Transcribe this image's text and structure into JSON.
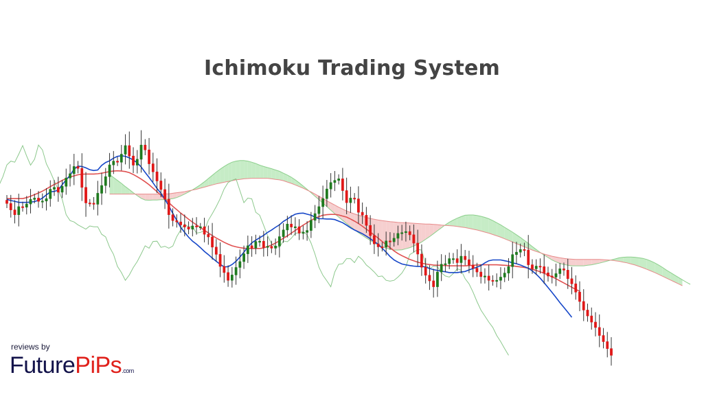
{
  "chart_data": {
    "type": "candlestick",
    "title": "Ichimoku Trading System",
    "xlabel": "",
    "ylabel": "",
    "ylim": [
      0,
      100
    ],
    "grid": false,
    "legend": "none",
    "colors": {
      "bull": "#1f7a1f",
      "bear": "#e01818",
      "tenkan": "#1546c8",
      "kijun": "#e05050",
      "span_a": "#8ccf8c",
      "span_b": "#e88a8a",
      "chikou": "#8cc88c",
      "cloud_bull": "#c6ecc6",
      "cloud_bear": "#f6cfcf"
    },
    "close": [
      62.5,
      60.1,
      58.3,
      61.3,
      61.1,
      62.3,
      64.0,
      64.5,
      63.3,
      63.4,
      64.3,
      67.8,
      68.5,
      66.7,
      68.9,
      72.0,
      73.6,
      76.3,
      75.6,
      68.5,
      62.7,
      62.6,
      62.2,
      66.3,
      69.2,
      72.5,
      76.9,
      78.3,
      77.9,
      80.9,
      84.1,
      80.2,
      76.8,
      79.0,
      84.3,
      82.5,
      77.3,
      74.3,
      70.9,
      67.7,
      64.1,
      58.3,
      56.1,
      55.6,
      54.5,
      53.7,
      52.9,
      54.1,
      53.8,
      53.8,
      51.0,
      50.0,
      46.2,
      43.5,
      39.0,
      36.7,
      33.8,
      35.8,
      38.6,
      40.8,
      43.7,
      46.7,
      45.8,
      48.3,
      48.4,
      46.1,
      46.5,
      45.8,
      46.6,
      50.1,
      52.6,
      54.8,
      53.7,
      53.8,
      51.4,
      51.7,
      52.4,
      56.2,
      58.7,
      61.3,
      64.3,
      67.9,
      70.3,
      71.1,
      71.7,
      67.3,
      62.8,
      64.5,
      64.2,
      59.2,
      58.1,
      54.3,
      50.5,
      47.4,
      46.3,
      46.2,
      48.5,
      48.2,
      49.5,
      51.3,
      51.6,
      52.0,
      50.8,
      47.7,
      43.6,
      38.7,
      35.7,
      33.6,
      31.4,
      36.9,
      39.8,
      40.0,
      41.9,
      41.9,
      40.4,
      42.8,
      41.5,
      39.5,
      38.3,
      36.9,
      35.2,
      35.4,
      33.8,
      33.5,
      33.8,
      35.0,
      36.5,
      38.9,
      43.4,
      44.3,
      45.3,
      45.1,
      39.6,
      38.1,
      39.1,
      38.9,
      36.6,
      35.4,
      35.0,
      36.3,
      38.1,
      37.6,
      34.4,
      32.5,
      29.4,
      25.9,
      22.7,
      20.5,
      18.2,
      16.2,
      13.2,
      10.9,
      8.3,
      5.8
    ],
    "tenkan": [
      64.0,
      63.6,
      63.3,
      62.9,
      62.9,
      62.9,
      63.0,
      63.2,
      63.7,
      64.5,
      65.7,
      66.8,
      67.0,
      67.5,
      69.5,
      71.3,
      73.0,
      75.3,
      76.4,
      76.3,
      75.8,
      75.1,
      74.8,
      75.0,
      76.7,
      77.8,
      78.4,
      79.4,
      80.1,
      80.3,
      80.1,
      79.5,
      78.7,
      77.7,
      76.1,
      74.1,
      72.2,
      70.2,
      68.1,
      66.3,
      64.0,
      61.6,
      58.8,
      56.2,
      53.6,
      51.7,
      49.9,
      48.4,
      47.3,
      46.0,
      44.6,
      43.4,
      42.1,
      40.9,
      39.8,
      38.8,
      38.9,
      39.7,
      40.9,
      42.5,
      44.3,
      46.2,
      47.8,
      48.8,
      49.7,
      50.6,
      51.7,
      52.6,
      53.6,
      54.5,
      55.8,
      56.7,
      57.7,
      58.5,
      58.8,
      58.9,
      58.5,
      58.1,
      57.4,
      56.8,
      56.8,
      56.7,
      56.7,
      56.5,
      55.9,
      55.3,
      54.4,
      53.4,
      52.6,
      51.9,
      51.2,
      50.3,
      49.3,
      48.3,
      47.2,
      45.8,
      44.3,
      42.7,
      41.4,
      40.6,
      39.9,
      39.6,
      39.3,
      39.1,
      39.0,
      39.0,
      38.8,
      38.2,
      37.8,
      37.5,
      37.2,
      37.0,
      36.7,
      36.7,
      36.7,
      36.9,
      37.1,
      37.7,
      38.2,
      38.7,
      39.3,
      40.3,
      41.1,
      41.4,
      41.4,
      41.4,
      41.1,
      40.8,
      40.3,
      40.0,
      39.5,
      38.9,
      38.3,
      37.3,
      36.1,
      34.6,
      32.9,
      31.1,
      29.3,
      27.4,
      25.5,
      23.7,
      21.9,
      20.0
    ],
    "kijun": [
      64.3,
      64.3,
      64.3,
      64.3,
      64.3,
      64.7,
      65.2,
      65.8,
      66.4,
      67.1,
      67.9,
      68.8,
      69.6,
      70.3,
      71.1,
      71.8,
      72.4,
      72.8,
      73.2,
      73.4,
      73.5,
      73.5,
      73.5,
      73.6,
      73.8,
      74.1,
      74.4,
      74.6,
      74.7,
      74.6,
      74.4,
      74.0,
      73.3,
      72.5,
      71.6,
      70.6,
      69.5,
      68.2,
      66.9,
      65.6,
      64.2,
      62.8,
      61.4,
      60.2,
      58.9,
      57.8,
      56.6,
      55.5,
      54.5,
      53.5,
      52.5,
      51.5,
      50.5,
      49.6,
      48.8,
      48.0,
      47.3,
      46.7,
      46.3,
      46.0,
      45.8,
      45.7,
      45.7,
      45.7,
      45.7,
      45.9,
      46.4,
      47.0,
      47.7,
      48.6,
      49.5,
      50.4,
      51.4,
      52.4,
      53.4,
      54.4,
      55.3,
      56.2,
      57.0,
      57.6,
      58.1,
      58.3,
      58.4,
      58.4,
      58.2,
      57.8,
      57.4,
      56.7,
      55.9,
      55.0,
      54.0,
      52.9,
      51.8,
      50.7,
      49.5,
      48.3,
      47.1,
      46.0,
      44.8,
      43.8,
      43.0,
      42.3,
      41.6,
      41.1,
      40.6,
      40.2,
      39.9,
      39.7,
      39.5,
      39.4,
      39.4,
      39.3,
      39.2,
      39.2,
      39.2,
      39.2,
      39.2,
      39.3,
      39.4,
      39.5,
      39.6,
      39.6,
      39.6,
      39.6,
      39.6,
      39.5,
      39.4,
      39.3,
      39.2,
      39.0,
      38.8,
      38.6,
      38.3,
      37.9,
      37.5,
      37.0,
      36.4,
      35.8,
      35.1,
      34.4,
      33.6,
      32.8,
      32.0,
      31.2,
      30.4,
      29.7
    ],
    "span_a": [
      73.3,
      72.2,
      71.1,
      70.0,
      68.8,
      67.7,
      66.5,
      65.4,
      64.4,
      63.8,
      63.7,
      63.8,
      63.8,
      63.9,
      63.9,
      64.1,
      64.3,
      64.7,
      65.3,
      66.0,
      66.8,
      67.6,
      68.5,
      69.5,
      70.6,
      71.8,
      73.0,
      74.2,
      75.3,
      76.3,
      77.2,
      77.9,
      78.3,
      78.5,
      78.5,
      78.3,
      77.9,
      77.4,
      76.8,
      76.3,
      75.9,
      75.5,
      75.0,
      74.5,
      73.8,
      73.1,
      72.3,
      71.3,
      70.2,
      69.0,
      67.8,
      66.5,
      65.2,
      63.9,
      62.6,
      61.3,
      60.0,
      58.7,
      57.4,
      56.2,
      55.0,
      53.8,
      52.7,
      51.6,
      50.6,
      49.6,
      48.7,
      47.8,
      47.0,
      46.3,
      45.8,
      45.4,
      45.1,
      45.1,
      45.2,
      45.6,
      46.0,
      46.6,
      47.3,
      48.1,
      49.1,
      50.1,
      51.2,
      52.3,
      53.4,
      54.5,
      55.5,
      56.3,
      57.0,
      57.6,
      58.1,
      58.2,
      58.2,
      58.0,
      57.7,
      57.3,
      56.8,
      56.1,
      55.3,
      54.5,
      53.6,
      52.7,
      51.8,
      50.8,
      49.8,
      48.7,
      47.6,
      46.4,
      45.3,
      44.2,
      43.2,
      42.3,
      41.4,
      40.7,
      40.1,
      39.7,
      39.4,
      39.2,
      39.2,
      39.2,
      39.2,
      39.4,
      39.6,
      39.9,
      40.2,
      40.6,
      41.0,
      41.4,
      41.8,
      42.2,
      42.4,
      42.5,
      42.5,
      42.4,
      42.2,
      42.0,
      41.6,
      41.0,
      40.3,
      39.5,
      38.6,
      37.6,
      36.7,
      35.8,
      34.9,
      34.0,
      33.1,
      32.3
    ],
    "span_b": [
      66.0,
      66.0,
      66.0,
      66.0,
      66.0,
      66.0,
      66.0,
      66.0,
      66.0,
      66.0,
      66.0,
      66.0,
      66.0,
      66.0,
      66.1,
      66.1,
      66.3,
      66.5,
      66.7,
      66.9,
      67.2,
      67.5,
      67.8,
      68.2,
      68.6,
      69.0,
      69.4,
      69.8,
      70.1,
      70.4,
      70.7,
      71.0,
      71.3,
      71.5,
      71.7,
      71.8,
      71.9,
      71.9,
      71.9,
      71.9,
      71.9,
      71.7,
      71.5,
      71.3,
      71.0,
      70.5,
      70.0,
      69.4,
      68.8,
      68.2,
      67.5,
      66.8,
      66.0,
      65.2,
      64.4,
      63.5,
      62.7,
      61.9,
      61.1,
      60.4,
      59.7,
      59.1,
      58.6,
      58.1,
      57.7,
      57.3,
      56.9,
      56.6,
      56.3,
      56.1,
      55.9,
      55.7,
      55.6,
      55.4,
      55.3,
      55.3,
      55.2,
      55.1,
      55.0,
      54.9,
      54.8,
      54.8,
      54.7,
      54.6,
      54.4,
      54.3,
      54.2,
      54.1,
      53.9,
      53.7,
      53.5,
      53.2,
      52.9,
      52.6,
      52.2,
      51.8,
      51.4,
      50.9,
      50.4,
      49.9,
      49.3,
      48.7,
      48.1,
      47.5,
      46.9,
      46.3,
      45.7,
      45.1,
      44.6,
      44.1,
      43.6,
      43.2,
      42.8,
      42.5,
      42.2,
      42.0,
      41.8,
      41.7,
      41.6,
      41.6,
      41.6,
      41.6,
      41.6,
      41.6,
      41.6,
      41.5,
      41.4,
      41.3,
      41.1,
      40.9,
      40.6,
      40.3,
      39.9,
      39.5,
      39.0,
      38.5,
      37.9,
      37.3,
      36.7,
      36.0,
      35.3,
      34.6,
      33.9,
      33.2,
      32.5,
      31.8
    ]
  },
  "brand": {
    "reviews_text": "reviews by",
    "name_a": "Future",
    "name_b": "PiPs",
    "name_c": ".com"
  }
}
